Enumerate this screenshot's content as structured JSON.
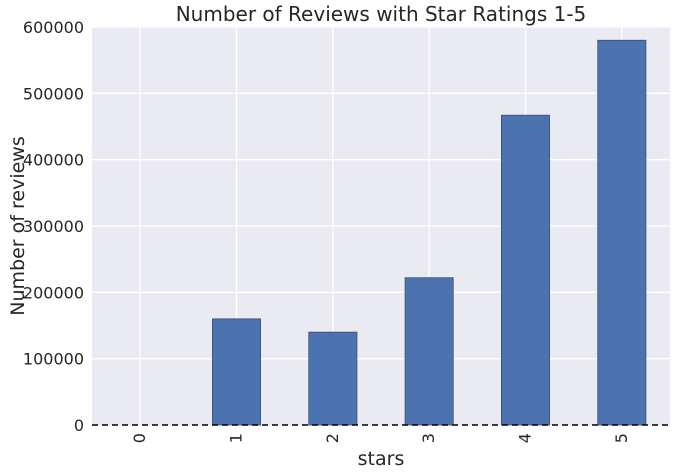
{
  "chart_data": {
    "type": "bar",
    "title": "Number of Reviews with Star Ratings 1-5",
    "xlabel": "stars",
    "ylabel": "Number of reviews",
    "categories": [
      "0",
      "1",
      "2",
      "3",
      "4",
      "5"
    ],
    "values": [
      0,
      160000,
      140000,
      222000,
      467000,
      580000
    ],
    "ylim": [
      0,
      600000
    ],
    "yticks": [
      "0",
      "100000",
      "200000",
      "300000",
      "400000",
      "500000",
      "600000"
    ],
    "grid": true,
    "bar_color": "#4c72b0",
    "background_color": "#eaeaf2",
    "baseline_style": "dashed"
  }
}
